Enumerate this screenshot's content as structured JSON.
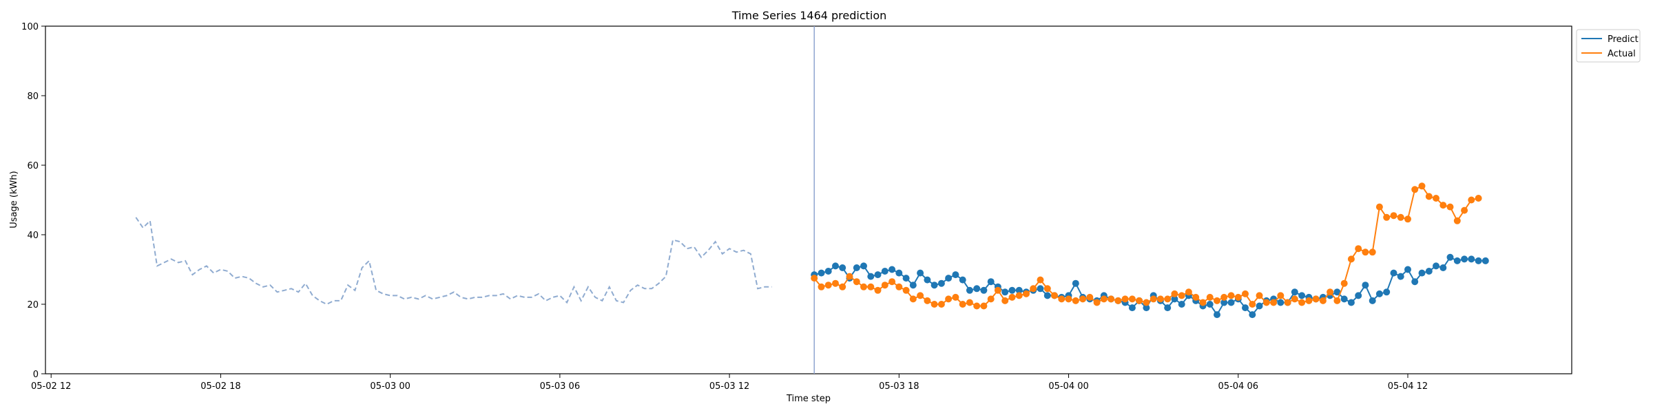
{
  "chart_data": {
    "type": "line",
    "title": "Time Series 1464 prediction",
    "xlabel": "Time step",
    "ylabel": "Usage (kWh)",
    "ylim": [
      0,
      100
    ],
    "yticks": [
      0,
      20,
      40,
      60,
      80,
      100
    ],
    "xlim_hours": [
      -1.2,
      52.8
    ],
    "x_origin": "05-02 13:00",
    "xticks": [
      {
        "label": "05-02 12",
        "h": -1
      },
      {
        "label": "05-02 18",
        "h": 5
      },
      {
        "label": "05-03 00",
        "h": 11
      },
      {
        "label": "05-03 06",
        "h": 17
      },
      {
        "label": "05-03 12",
        "h": 23
      },
      {
        "label": "05-03 18",
        "h": 29
      },
      {
        "label": "05-04 00",
        "h": 35
      },
      {
        "label": "05-04 06",
        "h": 41
      },
      {
        "label": "05-04 12",
        "h": 47
      }
    ],
    "grid": false,
    "legend_position": "top-right (outside)",
    "forecast_start_h": 26.0,
    "colors": {
      "predict": "#1f77b4",
      "actual": "#ff7f0e",
      "history": "#8fabd0",
      "divider": "#8fa4d0"
    },
    "history": {
      "start_h": 2.0,
      "step_h": 0.25,
      "values": [
        45,
        42,
        44,
        31,
        32,
        33,
        32,
        32.5,
        28.5,
        30,
        31,
        29,
        30,
        29.5,
        27.5,
        28,
        27.5,
        26,
        25,
        25.5,
        23.5,
        24,
        24.5,
        23.5,
        26,
        22.5,
        21,
        20,
        21,
        21,
        25.5,
        24,
        30.5,
        32.5,
        24,
        23,
        22.5,
        22.5,
        21.5,
        22,
        21.5,
        22.5,
        21.5,
        22,
        22.5,
        23.5,
        22,
        21.5,
        22,
        22,
        22.5,
        22.5,
        23,
        21.5,
        22.5,
        22,
        22,
        23,
        21,
        22,
        22.5,
        20.5,
        25,
        21,
        25,
        22,
        21,
        25,
        21,
        20.5,
        24,
        25.5,
        24.5,
        24.5,
        26,
        28,
        38.5,
        38,
        36,
        36.5,
        33.5,
        35.5,
        38,
        34.5,
        36,
        35,
        35.5,
        34.5,
        24.5,
        25,
        25
      ]
    },
    "series": [
      {
        "name": "Predict",
        "start_h": 26.0,
        "step_h": 0.25,
        "values": [
          28.5,
          29,
          29.5,
          31,
          30.5,
          27.5,
          30.5,
          31,
          28,
          28.5,
          29.5,
          30,
          29,
          27.5,
          25.5,
          29,
          27,
          25.5,
          26,
          27.5,
          28.5,
          27,
          24,
          24.5,
          24,
          26.5,
          25,
          23.5,
          24,
          24,
          23.5,
          24,
          24.5,
          22.5,
          22.5,
          22,
          22.5,
          26,
          22,
          21.5,
          21,
          22.5,
          21.5,
          21,
          20.5,
          19,
          21,
          19,
          22.5,
          21,
          19,
          21.5,
          20,
          22.5,
          21,
          19.5,
          20,
          17,
          20.5,
          20.5,
          21.5,
          19,
          17,
          19.5,
          21,
          21.5,
          20.5,
          20.5,
          23.5,
          22.5,
          22,
          21.5,
          22,
          22.5,
          23.5,
          21.5,
          20.5,
          22.5,
          25.5,
          21,
          23,
          23.5,
          29,
          28,
          30,
          26.5,
          29,
          29.5,
          31,
          30.5,
          33.5,
          32.5,
          33,
          33,
          32.5,
          32.5
        ]
      },
      {
        "name": "Actual",
        "start_h": 26.0,
        "step_h": 0.25,
        "values": [
          27.5,
          25,
          25.5,
          26,
          25,
          28,
          26.5,
          25,
          25,
          24,
          25.5,
          26.5,
          25,
          24,
          21.5,
          22.5,
          21,
          20,
          20,
          21.5,
          22,
          20,
          20.5,
          19.5,
          19.5,
          21.5,
          24,
          21,
          22,
          22.5,
          23,
          24.5,
          27,
          24.5,
          22.5,
          21.5,
          21.5,
          21,
          21.5,
          22,
          20.5,
          21.5,
          21.5,
          21,
          21.5,
          21.5,
          21,
          20.5,
          21.5,
          21.5,
          21.5,
          23,
          22.5,
          23.5,
          22,
          20.5,
          22,
          21,
          22,
          22.5,
          22,
          23,
          20,
          22.5,
          20.5,
          20.5,
          22.5,
          20.5,
          21.5,
          20.5,
          21,
          21.5,
          21,
          23.5,
          21,
          26,
          33,
          36,
          35,
          35,
          48,
          45,
          45.5,
          45,
          44.5,
          53,
          54,
          51,
          50.5,
          48.5,
          48,
          44,
          47,
          50,
          50.5
        ]
      }
    ]
  }
}
